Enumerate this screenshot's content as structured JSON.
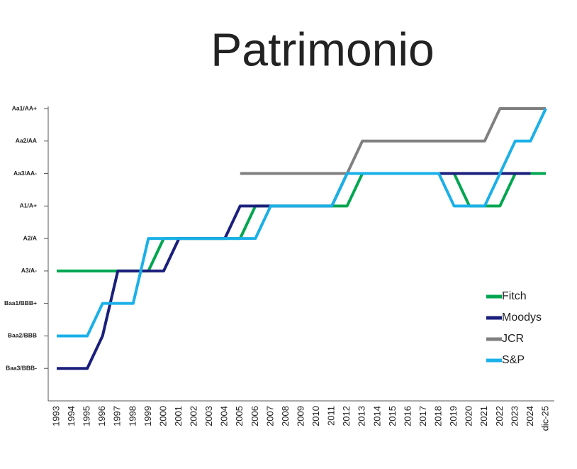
{
  "chart_data": {
    "type": "line",
    "title": "Patrimonio",
    "categories": [
      "1993",
      "1994",
      "1995",
      "1996",
      "1997",
      "1998",
      "1999",
      "2000",
      "2001",
      "2002",
      "2003",
      "2004",
      "2005",
      "2006",
      "2007",
      "2008",
      "2009",
      "2010",
      "2011",
      "2012",
      "2013",
      "2014",
      "2015",
      "2016",
      "2017",
      "2018",
      "2019",
      "2020",
      "2021",
      "2022",
      "2023",
      "2024",
      "dic-25"
    ],
    "ylim": [
      0,
      9
    ],
    "yticks": [
      {
        "value": 1,
        "label": "Baa3/BBB-"
      },
      {
        "value": 2,
        "label": "Baa2/BBB"
      },
      {
        "value": 3,
        "label": "Baa1/BBB+"
      },
      {
        "value": 4,
        "label": "A3/A-"
      },
      {
        "value": 5,
        "label": "A2/A"
      },
      {
        "value": 6,
        "label": "A1/A+"
      },
      {
        "value": 7,
        "label": "Aa3/AA-"
      },
      {
        "value": 8,
        "label": "Aa2/AA"
      },
      {
        "value": 9,
        "label": "Aa1/AA+"
      }
    ],
    "series": [
      {
        "name": "Fitch",
        "color": "#00a650",
        "values": [
          4,
          4,
          4,
          4,
          4,
          4,
          4,
          5,
          5,
          5,
          5,
          5,
          5,
          6,
          6,
          6,
          6,
          6,
          6,
          6,
          7,
          7,
          7,
          7,
          7,
          7,
          7,
          6,
          6,
          6,
          7,
          7,
          7
        ]
      },
      {
        "name": "Moodys",
        "color": "#1b1f7c",
        "values": [
          1,
          1,
          1,
          2,
          4,
          4,
          4,
          4,
          5,
          5,
          5,
          5,
          6,
          6,
          6,
          6,
          6,
          6,
          6,
          7,
          7,
          7,
          7,
          7,
          7,
          7,
          7,
          7,
          7,
          7,
          7,
          7,
          null
        ]
      },
      {
        "name": "JCR",
        "color": "#808080",
        "values": [
          null,
          null,
          null,
          null,
          null,
          null,
          null,
          null,
          null,
          null,
          null,
          null,
          7,
          7,
          7,
          7,
          7,
          7,
          7,
          7,
          8,
          8,
          8,
          8,
          8,
          8,
          8,
          8,
          8,
          9,
          9,
          9,
          9
        ]
      },
      {
        "name": "S&P",
        "color": "#1ab0e8",
        "values": [
          2,
          2,
          2,
          3,
          3,
          3,
          5,
          5,
          5,
          5,
          5,
          5,
          5,
          5,
          6,
          6,
          6,
          6,
          6,
          7,
          7,
          7,
          7,
          7,
          7,
          7,
          6,
          6,
          6,
          7,
          8,
          8,
          9
        ]
      }
    ],
    "legend": "right"
  }
}
